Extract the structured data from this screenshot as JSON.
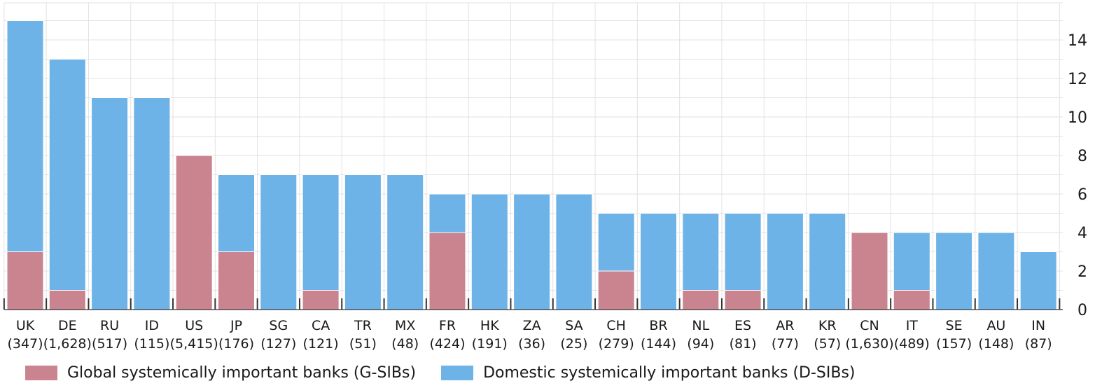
{
  "chart_data": {
    "type": "bar",
    "stacked": true,
    "categories": [
      "UK",
      "DE",
      "RU",
      "ID",
      "US",
      "JP",
      "SG",
      "CA",
      "TR",
      "MX",
      "FR",
      "HK",
      "ZA",
      "SA",
      "CH",
      "BR",
      "NL",
      "ES",
      "AR",
      "KR",
      "CN",
      "IT",
      "SE",
      "AU",
      "IN"
    ],
    "category_counts": [
      "(347)",
      "(1,628)",
      "(517)",
      "(115)",
      "(5,415)",
      "(176)",
      "(127)",
      "(121)",
      "(51)",
      "(48)",
      "(424)",
      "(191)",
      "(36)",
      "(25)",
      "(279)",
      "(144)",
      "(94)",
      "(81)",
      "(77)",
      "(57)",
      "(1,630)",
      "(489)",
      "(157)",
      "(148)",
      "(87)"
    ],
    "series": [
      {
        "name": "Global systemically important banks (G-SIBs)",
        "color": "#c98490",
        "values": [
          3,
          1,
          0,
          0,
          8,
          3,
          0,
          1,
          0,
          0,
          4,
          0,
          0,
          0,
          2,
          0,
          1,
          1,
          0,
          0,
          4,
          1,
          0,
          0,
          0
        ]
      },
      {
        "name": "Domestic systemically important banks (D-SIBs)",
        "color": "#6db3e8",
        "values": [
          12,
          12,
          11,
          11,
          0,
          4,
          7,
          6,
          7,
          7,
          2,
          6,
          6,
          6,
          3,
          5,
          4,
          4,
          5,
          5,
          0,
          3,
          4,
          4,
          3
        ]
      }
    ],
    "ylim": [
      0,
      16
    ],
    "yticks": [
      "0",
      "2",
      "4",
      "6",
      "8",
      "10",
      "12",
      "14"
    ],
    "y_axis_side": "right",
    "grid": true,
    "legend_position": "bottom"
  }
}
